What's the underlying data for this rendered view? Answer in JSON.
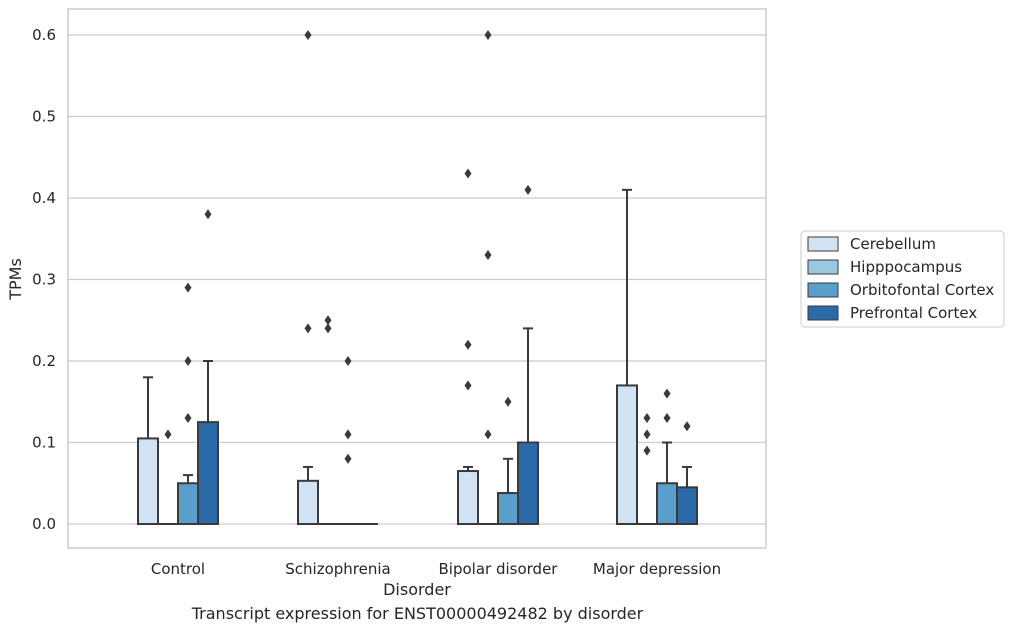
{
  "caption": "Transcript expression for ENST00000492482 by disorder",
  "chart_data": {
    "type": "box",
    "xlabel": "Disorder",
    "ylabel": "TPMs",
    "ylim": [
      -0.03,
      0.63
    ],
    "yticks": [
      "0.0",
      "0.1",
      "0.2",
      "0.3",
      "0.4",
      "0.5",
      "0.6"
    ],
    "grid": "horizontal",
    "legend_position": "right",
    "categories": [
      "Control",
      "Schizophrenia",
      "Bipolar disorder",
      "Major depression"
    ],
    "series": [
      {
        "name": "Cerebellum",
        "color": "#d1e2f2",
        "boxes": [
          {
            "q1": 0,
            "q3": 0.105,
            "whisker_low": 0,
            "whisker_high": 0.18,
            "outliers": []
          },
          {
            "q1": 0,
            "q3": 0.053,
            "whisker_low": 0,
            "whisker_high": 0.07,
            "outliers": [
              0.24,
              0.6
            ]
          },
          {
            "q1": 0,
            "q3": 0.065,
            "whisker_low": 0,
            "whisker_high": 0.07,
            "outliers": [
              0.17,
              0.22,
              0.43
            ]
          },
          {
            "q1": 0,
            "q3": 0.17,
            "whisker_low": 0,
            "whisker_high": 0.41,
            "outliers": []
          }
        ]
      },
      {
        "name": "Hipppocampus",
        "color": "#9ac8e0",
        "boxes": [
          {
            "q1": 0,
            "q3": 0,
            "whisker_low": 0,
            "whisker_high": 0,
            "outliers": [
              0.11
            ]
          },
          {
            "q1": 0,
            "q3": 0,
            "whisker_low": 0,
            "whisker_high": 0,
            "outliers": [
              0.24,
              0.25
            ]
          },
          {
            "q1": 0,
            "q3": 0,
            "whisker_low": 0,
            "whisker_high": 0,
            "outliers": [
              0.11,
              0.33,
              0.6
            ]
          },
          {
            "q1": 0,
            "q3": 0,
            "whisker_low": 0,
            "whisker_high": 0,
            "outliers": [
              0.09,
              0.11,
              0.13
            ]
          }
        ]
      },
      {
        "name": "Orbitofontal Cortex",
        "color": "#5a9fcb",
        "boxes": [
          {
            "q1": 0,
            "q3": 0.05,
            "whisker_low": 0,
            "whisker_high": 0.06,
            "outliers": [
              0.13,
              0.2,
              0.29
            ]
          },
          {
            "q1": 0,
            "q3": 0,
            "whisker_low": 0,
            "whisker_high": 0,
            "outliers": [
              0.08,
              0.11,
              0.2
            ]
          },
          {
            "q1": 0,
            "q3": 0.038,
            "whisker_low": 0,
            "whisker_high": 0.08,
            "outliers": [
              0.15
            ]
          },
          {
            "q1": 0,
            "q3": 0.05,
            "whisker_low": 0,
            "whisker_high": 0.1,
            "outliers": [
              0.13,
              0.16
            ]
          }
        ]
      },
      {
        "name": "Prefrontal Cortex",
        "color": "#2a6aa8",
        "boxes": [
          {
            "q1": 0,
            "q3": 0.125,
            "whisker_low": 0,
            "whisker_high": 0.2,
            "outliers": [
              0.38
            ]
          },
          {
            "q1": 0,
            "q3": 0,
            "whisker_low": 0,
            "whisker_high": 0,
            "outliers": []
          },
          {
            "q1": 0,
            "q3": 0.1,
            "whisker_low": 0,
            "whisker_high": 0.24,
            "outliers": [
              0.41
            ]
          },
          {
            "q1": 0,
            "q3": 0.045,
            "whisker_low": 0,
            "whisker_high": 0.07,
            "outliers": [
              0.12
            ]
          }
        ]
      }
    ]
  }
}
